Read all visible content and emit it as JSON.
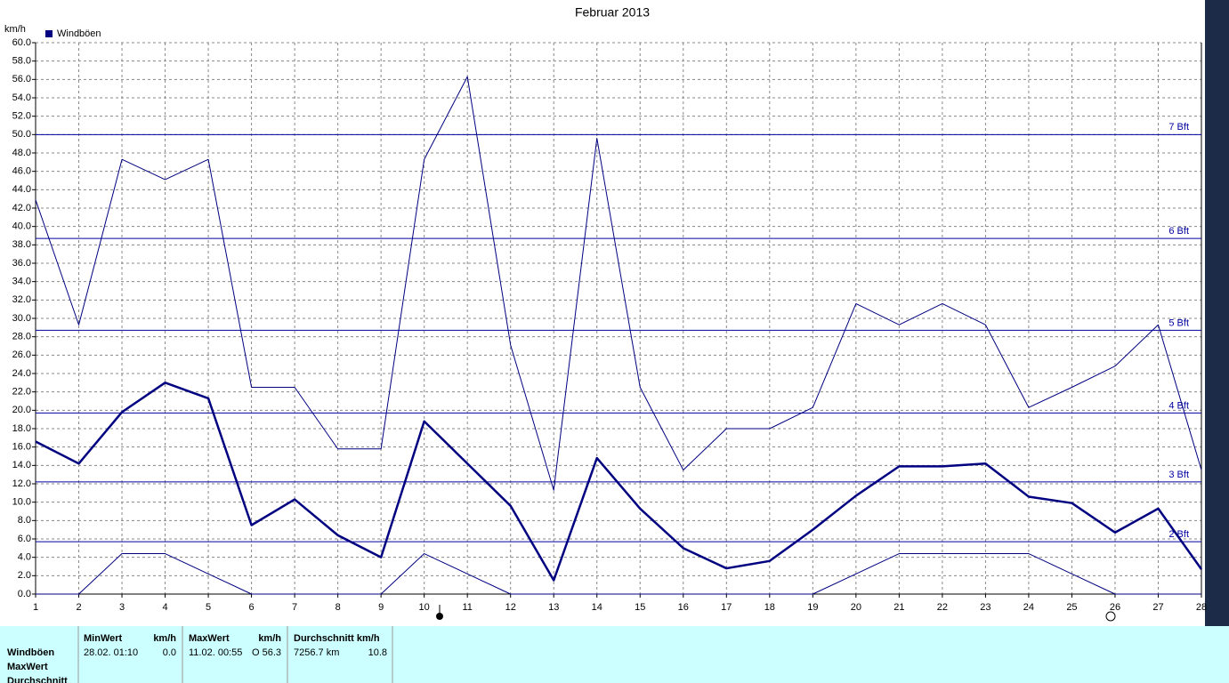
{
  "chart_data": {
    "type": "line",
    "title": "Februar 2013",
    "y_unit": "km/h",
    "x": [
      1,
      2,
      3,
      4,
      5,
      6,
      7,
      8,
      9,
      10,
      11,
      12,
      13,
      14,
      15,
      16,
      17,
      18,
      19,
      20,
      21,
      22,
      23,
      24,
      25,
      26,
      27,
      28
    ],
    "xlim": [
      1,
      28
    ],
    "xticks": [
      1,
      2,
      3,
      4,
      5,
      6,
      7,
      8,
      9,
      10,
      11,
      12,
      13,
      14,
      15,
      16,
      17,
      18,
      19,
      20,
      21,
      22,
      23,
      24,
      25,
      26,
      27,
      28
    ],
    "ylim": [
      0,
      60
    ],
    "yticks": [
      {
        "value": 0,
        "label": "0.0"
      },
      {
        "value": 2,
        "label": "2.0"
      },
      {
        "value": 4,
        "label": "4.0"
      },
      {
        "value": 6,
        "label": "6.0"
      },
      {
        "value": 8,
        "label": "8.0"
      },
      {
        "value": 10,
        "label": "10.0"
      },
      {
        "value": 12,
        "label": "12.0"
      },
      {
        "value": 14,
        "label": "14.0"
      },
      {
        "value": 16,
        "label": "16.0"
      },
      {
        "value": 18,
        "label": "18.0"
      },
      {
        "value": 20,
        "label": "20.0"
      },
      {
        "value": 22,
        "label": "22.0"
      },
      {
        "value": 24,
        "label": "24.0"
      },
      {
        "value": 26,
        "label": "26.0"
      },
      {
        "value": 28,
        "label": "28.0"
      },
      {
        "value": 30,
        "label": "30.0"
      },
      {
        "value": 32,
        "label": "32.0"
      },
      {
        "value": 34,
        "label": "34.0"
      },
      {
        "value": 36,
        "label": "36.0"
      },
      {
        "value": 38,
        "label": "38.0"
      },
      {
        "value": 40,
        "label": "40.0"
      },
      {
        "value": 42,
        "label": "42.0"
      },
      {
        "value": 44,
        "label": "44.0"
      },
      {
        "value": 46,
        "label": "46.0"
      },
      {
        "value": 48,
        "label": "48.0"
      },
      {
        "value": 50,
        "label": "50.0"
      },
      {
        "value": 52,
        "label": "52.0"
      },
      {
        "value": 54,
        "label": "54.0"
      },
      {
        "value": 56,
        "label": "56.0"
      },
      {
        "value": 58,
        "label": "58.0"
      },
      {
        "value": 60,
        "label": "60.0"
      }
    ],
    "grid": true,
    "reference_lines": [
      {
        "value": 50,
        "label": "7 Bft"
      },
      {
        "value": 38.7,
        "label": "6 Bft"
      },
      {
        "value": 28.7,
        "label": "5 Bft"
      },
      {
        "value": 19.7,
        "label": "4 Bft"
      },
      {
        "value": 12.2,
        "label": "3 Bft"
      },
      {
        "value": 5.7,
        "label": "2 Bft"
      }
    ],
    "reference_color": "#0000a0",
    "series": [
      {
        "name": "Windböen",
        "color": "#000080",
        "line_width": 1,
        "values": [
          42.9,
          29.3,
          47.3,
          45.1,
          47.3,
          22.5,
          22.5,
          15.8,
          15.8,
          47.3,
          56.3,
          27.1,
          11.3,
          49.6,
          22.5,
          13.5,
          18.0,
          18.0,
          20.3,
          31.6,
          29.3,
          31.6,
          29.3,
          20.3,
          22.5,
          24.8,
          29.3,
          13.5
        ]
      },
      {
        "color": "#000080",
        "line_width": 2.5,
        "values": [
          16.6,
          14.2,
          19.8,
          23.0,
          21.3,
          7.5,
          10.3,
          6.4,
          4.0,
          18.8,
          14.2,
          9.6,
          1.5,
          14.8,
          9.3,
          5.0,
          2.8,
          3.6,
          7.0,
          10.7,
          13.9,
          13.9,
          14.2,
          10.6,
          9.9,
          6.7,
          9.3,
          2.7
        ]
      },
      {
        "color": "#000080",
        "line_width": 1,
        "values": [
          0,
          0,
          4.4,
          4.4,
          2.2,
          0,
          0,
          0,
          0,
          4.4,
          2.2,
          0,
          0,
          0,
          0,
          0,
          0,
          0,
          0,
          2.2,
          4.4,
          4.4,
          4.4,
          4.4,
          2.2,
          0,
          0,
          0
        ]
      }
    ]
  },
  "table": {
    "row_labels": [
      "Windböen",
      "MaxWert",
      "Durchschnitt"
    ],
    "columns": [
      {
        "header": [
          "MinWert",
          "km/h"
        ],
        "row": [
          "28.02.  01:10",
          "0.0"
        ]
      },
      {
        "header": [
          "MaxWert",
          "km/h"
        ],
        "row": [
          "11.02.  00:55",
          "O 56.3"
        ]
      },
      {
        "header": [
          "Durchschnitt km/h"
        ],
        "row": [
          "7256.7 km",
          "10.8"
        ]
      }
    ]
  }
}
